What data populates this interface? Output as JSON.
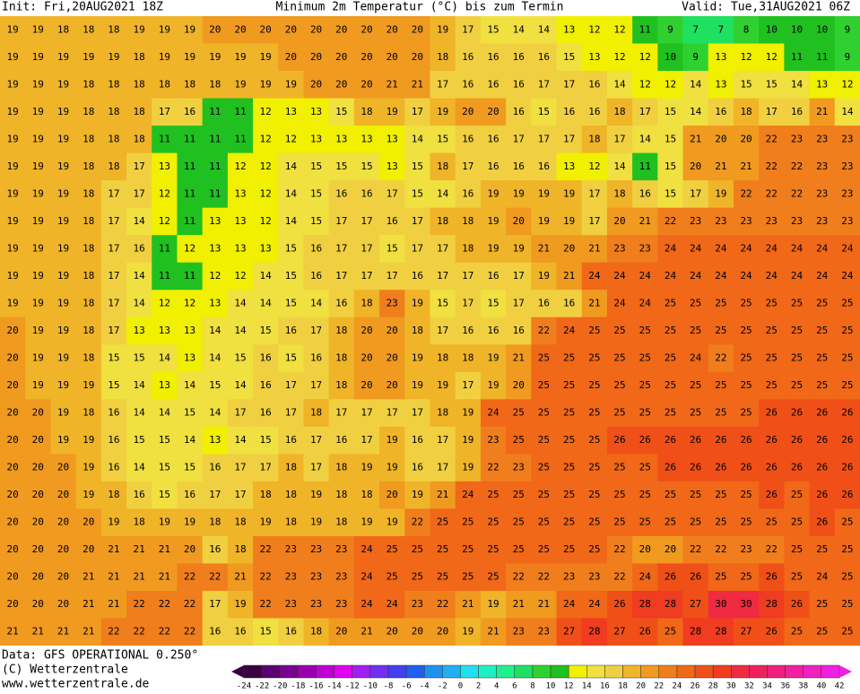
{
  "map": {
    "header": {
      "init": "Init: Fri,20AUG2021 18Z",
      "title": "Minimum 2m Temperatur (°C) bis zum Termin",
      "valid": "Valid: Tue,31AUG2021 06Z"
    },
    "grid": [
      [
        19,
        19,
        18,
        18,
        18,
        19,
        19,
        19,
        20,
        20,
        20,
        20,
        20,
        20,
        20,
        20,
        20,
        19,
        17,
        15,
        14,
        14,
        13,
        12,
        12,
        11,
        9,
        7,
        7,
        8,
        10,
        10,
        10,
        9
      ],
      [
        19,
        19,
        19,
        19,
        19,
        18,
        19,
        19,
        19,
        19,
        19,
        20,
        20,
        20,
        20,
        20,
        20,
        18,
        16,
        16,
        16,
        16,
        15,
        13,
        12,
        12,
        10,
        9,
        13,
        12,
        12,
        11,
        11,
        9
      ],
      [
        19,
        19,
        19,
        18,
        18,
        18,
        18,
        18,
        18,
        19,
        19,
        19,
        20,
        20,
        20,
        21,
        21,
        17,
        16,
        16,
        16,
        17,
        17,
        16,
        14,
        12,
        12,
        14,
        13,
        15,
        15,
        14,
        13,
        12
      ],
      [
        19,
        19,
        19,
        18,
        18,
        18,
        17,
        16,
        11,
        11,
        12,
        13,
        13,
        15,
        18,
        19,
        17,
        19,
        20,
        20,
        16,
        15,
        16,
        16,
        18,
        17,
        15,
        14,
        16,
        18,
        17,
        16,
        21,
        14
      ],
      [
        19,
        19,
        19,
        18,
        18,
        18,
        11,
        11,
        11,
        11,
        12,
        12,
        13,
        13,
        13,
        13,
        14,
        15,
        16,
        16,
        17,
        17,
        17,
        18,
        17,
        14,
        15,
        21,
        20,
        20,
        22,
        23,
        23,
        23
      ],
      [
        19,
        19,
        19,
        18,
        18,
        17,
        13,
        11,
        11,
        12,
        12,
        14,
        15,
        15,
        15,
        13,
        15,
        18,
        17,
        16,
        16,
        16,
        13,
        12,
        14,
        11,
        15,
        20,
        21,
        21,
        22,
        22,
        23,
        23
      ],
      [
        19,
        19,
        19,
        18,
        17,
        17,
        12,
        11,
        11,
        13,
        12,
        14,
        15,
        16,
        16,
        17,
        15,
        14,
        16,
        19,
        19,
        19,
        19,
        17,
        18,
        16,
        15,
        17,
        19,
        22,
        22,
        22,
        23,
        23
      ],
      [
        19,
        19,
        19,
        18,
        17,
        14,
        12,
        11,
        13,
        13,
        12,
        14,
        15,
        17,
        17,
        16,
        17,
        18,
        18,
        19,
        20,
        19,
        19,
        17,
        20,
        21,
        22,
        23,
        23,
        23,
        23,
        23,
        23,
        23
      ],
      [
        19,
        19,
        19,
        18,
        17,
        16,
        11,
        12,
        13,
        13,
        13,
        15,
        16,
        17,
        17,
        15,
        17,
        17,
        18,
        19,
        19,
        21,
        20,
        21,
        23,
        23,
        24,
        24,
        24,
        24,
        24,
        24,
        24,
        24
      ],
      [
        19,
        19,
        19,
        18,
        17,
        14,
        11,
        11,
        12,
        12,
        14,
        15,
        16,
        17,
        17,
        17,
        16,
        17,
        17,
        16,
        17,
        19,
        21,
        24,
        24,
        24,
        24,
        24,
        24,
        24,
        24,
        24,
        24,
        24
      ],
      [
        19,
        19,
        19,
        18,
        17,
        14,
        12,
        12,
        13,
        14,
        14,
        15,
        14,
        16,
        18,
        23,
        19,
        15,
        17,
        15,
        17,
        16,
        16,
        21,
        24,
        24,
        25,
        25,
        25,
        25,
        25,
        25,
        25,
        25
      ],
      [
        20,
        19,
        19,
        18,
        17,
        13,
        13,
        13,
        14,
        14,
        15,
        16,
        17,
        18,
        20,
        20,
        18,
        17,
        16,
        16,
        16,
        22,
        24,
        25,
        25,
        25,
        25,
        25,
        25,
        25,
        25,
        25,
        25,
        25
      ],
      [
        20,
        19,
        19,
        18,
        15,
        15,
        14,
        13,
        14,
        15,
        16,
        15,
        16,
        18,
        20,
        20,
        19,
        18,
        18,
        19,
        21,
        25,
        25,
        25,
        25,
        25,
        25,
        24,
        22,
        25,
        25,
        25,
        25,
        25
      ],
      [
        20,
        19,
        19,
        19,
        15,
        14,
        13,
        14,
        15,
        14,
        16,
        17,
        17,
        18,
        20,
        20,
        19,
        19,
        17,
        19,
        20,
        25,
        25,
        25,
        25,
        25,
        25,
        25,
        25,
        25,
        25,
        25,
        25,
        25
      ],
      [
        20,
        20,
        19,
        18,
        16,
        14,
        14,
        15,
        14,
        17,
        16,
        17,
        18,
        17,
        17,
        17,
        17,
        18,
        19,
        24,
        25,
        25,
        25,
        25,
        25,
        25,
        25,
        25,
        25,
        25,
        26,
        26,
        26,
        26
      ],
      [
        20,
        20,
        19,
        19,
        16,
        15,
        15,
        14,
        13,
        14,
        15,
        16,
        17,
        16,
        17,
        19,
        16,
        17,
        19,
        23,
        25,
        25,
        25,
        25,
        26,
        26,
        26,
        26,
        26,
        26,
        26,
        26,
        26,
        26
      ],
      [
        20,
        20,
        20,
        19,
        16,
        14,
        15,
        15,
        16,
        17,
        17,
        18,
        17,
        18,
        19,
        19,
        16,
        17,
        19,
        22,
        23,
        25,
        25,
        25,
        25,
        25,
        26,
        26,
        26,
        26,
        26,
        26,
        26,
        26
      ],
      [
        20,
        20,
        20,
        19,
        18,
        16,
        15,
        16,
        17,
        17,
        18,
        18,
        19,
        18,
        18,
        20,
        19,
        21,
        24,
        25,
        25,
        25,
        25,
        25,
        25,
        25,
        25,
        25,
        25,
        25,
        26,
        25,
        26,
        26
      ],
      [
        20,
        20,
        20,
        20,
        19,
        18,
        19,
        19,
        18,
        18,
        19,
        18,
        19,
        18,
        19,
        19,
        22,
        25,
        25,
        25,
        25,
        25,
        25,
        25,
        25,
        25,
        25,
        25,
        25,
        25,
        25,
        25,
        26,
        25
      ],
      [
        20,
        20,
        20,
        20,
        21,
        21,
        21,
        20,
        16,
        18,
        22,
        23,
        23,
        23,
        24,
        25,
        25,
        25,
        25,
        25,
        25,
        25,
        25,
        25,
        22,
        20,
        20,
        22,
        22,
        23,
        22,
        25,
        25,
        25
      ],
      [
        20,
        20,
        20,
        21,
        21,
        21,
        21,
        22,
        22,
        21,
        22,
        23,
        23,
        23,
        24,
        25,
        25,
        25,
        25,
        25,
        22,
        22,
        23,
        23,
        22,
        24,
        26,
        26,
        25,
        25,
        26,
        25,
        24,
        25
      ],
      [
        20,
        20,
        20,
        21,
        21,
        22,
        22,
        22,
        17,
        19,
        22,
        23,
        23,
        23,
        24,
        24,
        23,
        22,
        21,
        19,
        21,
        21,
        24,
        24,
        26,
        28,
        28,
        27,
        30,
        30,
        28,
        26,
        25,
        25
      ],
      [
        21,
        21,
        21,
        21,
        22,
        22,
        22,
        22,
        16,
        16,
        15,
        16,
        18,
        20,
        21,
        20,
        20,
        20,
        19,
        21,
        23,
        23,
        27,
        28,
        27,
        26,
        25,
        28,
        28,
        27,
        26,
        25,
        25,
        25
      ]
    ],
    "legend": {
      "ticks": [
        -24,
        -22,
        -20,
        -18,
        -16,
        -14,
        -12,
        -10,
        -8,
        -6,
        -4,
        -2,
        0,
        2,
        4,
        6,
        8,
        10,
        12,
        14,
        16,
        18,
        20,
        22,
        24,
        26,
        28,
        30,
        32,
        34,
        36,
        38,
        40,
        42
      ],
      "colors": [
        "#3a0040",
        "#5a0070",
        "#7a0090",
        "#9a00b0",
        "#c000d0",
        "#e000f0",
        "#a020f0",
        "#7030f0",
        "#4040f0",
        "#2060f0",
        "#2090f0",
        "#20b0f0",
        "#20e0f0",
        "#20f0c0",
        "#20f090",
        "#20e060",
        "#30d030",
        "#20c020",
        "#f0f000",
        "#f0e040",
        "#f0d040",
        "#f0b428",
        "#f09a20",
        "#f07e1c",
        "#f06818",
        "#f05018",
        "#f03c20",
        "#f02a40",
        "#f02060",
        "#f02080",
        "#f020a0",
        "#f020c0",
        "#f020e0"
      ]
    },
    "footer": {
      "data": "Data: GFS OPERATIONAL 0.250°",
      "copyright": "(C) Wetterzentrale",
      "url": "www.wetterzentrale.de"
    }
  }
}
